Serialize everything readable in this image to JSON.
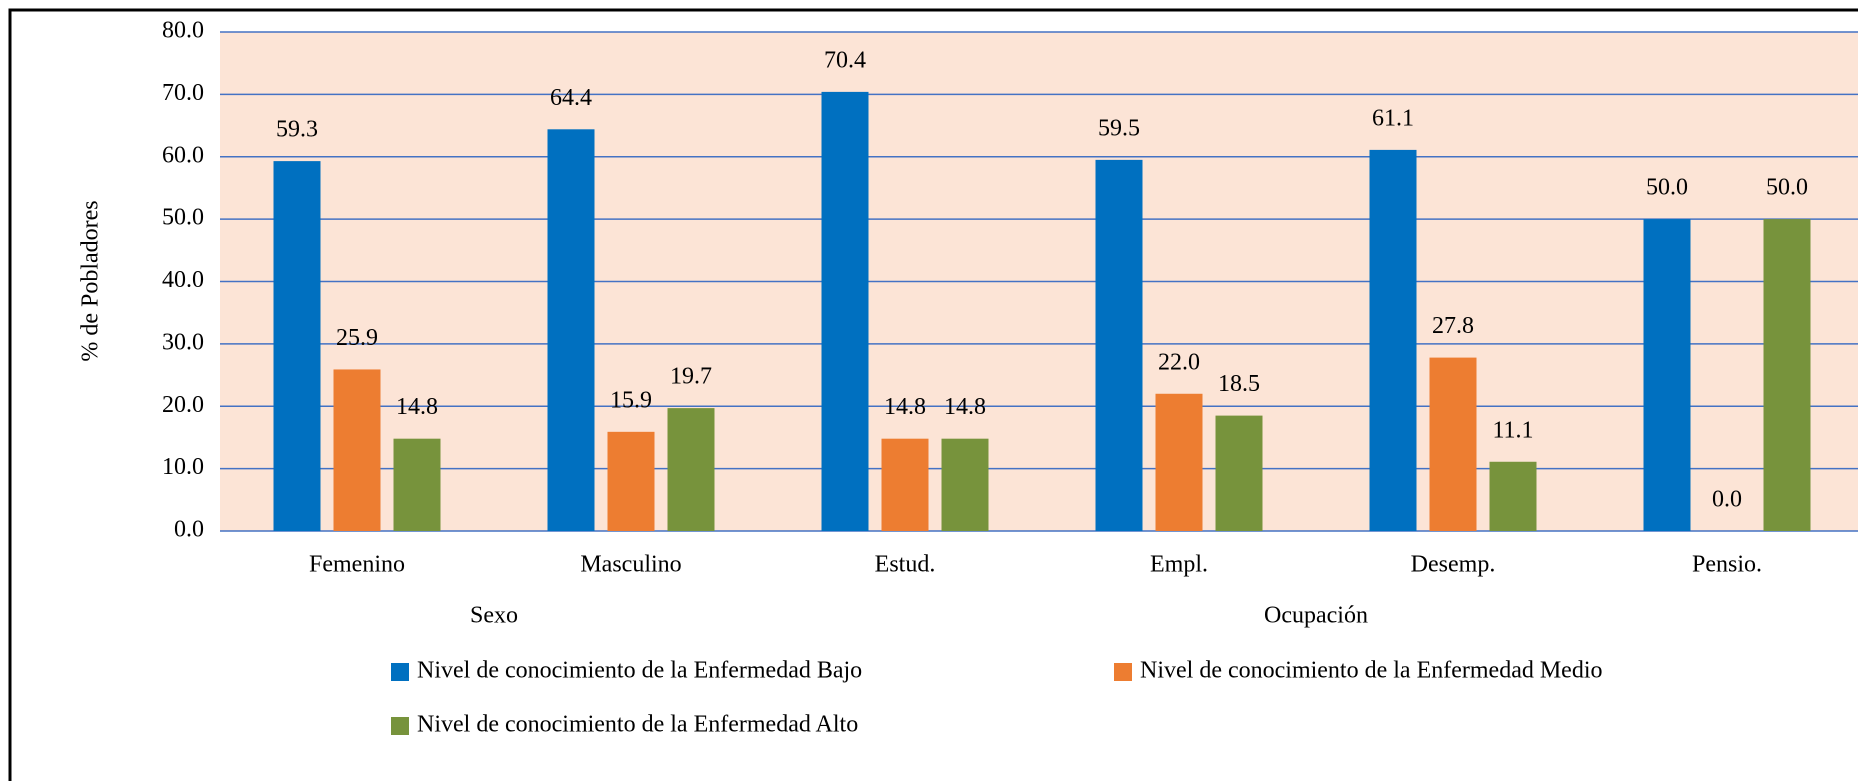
{
  "chart_data": {
    "type": "bar",
    "y_label": "% de Pobladores",
    "categories": [
      "Femenino",
      "Masculino",
      "Estud.",
      "Empl.",
      "Desemp.",
      "Pensio."
    ],
    "group_labels": [
      "Sexo",
      "Ocupación"
    ],
    "series": [
      {
        "name": "Nivel de conocimiento de la Enfermedad Bajo",
        "color": "#0070c0",
        "values": [
          59.3,
          64.4,
          70.4,
          59.5,
          61.1,
          50.0
        ],
        "value_labels": [
          "59.3",
          "64.4",
          "70.4",
          "59.5",
          "61.1",
          "50.0"
        ]
      },
      {
        "name": "Nivel de conocimiento de la Enfermedad Medio",
        "color": "#ed7d31",
        "values": [
          25.9,
          15.9,
          14.8,
          22.0,
          27.8,
          0.0
        ],
        "value_labels": [
          "25.9",
          "15.9",
          "14.8",
          "22.0",
          "27.8",
          "0.0"
        ]
      },
      {
        "name": "Nivel de conocimiento de la Enfermedad Alto",
        "color": "#77933c",
        "values": [
          14.8,
          19.7,
          14.8,
          18.5,
          11.1,
          50.0
        ],
        "value_labels": [
          "14.8",
          "19.7",
          "14.8",
          "18.5",
          "11.1",
          "50.0"
        ]
      }
    ],
    "ylim": [
      0,
      80
    ],
    "yticks": [
      {
        "value": 0,
        "label": "0.0"
      },
      {
        "value": 10,
        "label": "10.0"
      },
      {
        "value": 20,
        "label": "20.0"
      },
      {
        "value": 30,
        "label": "30.0"
      },
      {
        "value": 40,
        "label": "40.0"
      },
      {
        "value": 50,
        "label": "50.0"
      },
      {
        "value": 60,
        "label": "60.0"
      },
      {
        "value": 70,
        "label": "70.0"
      },
      {
        "value": 80,
        "label": "80.0"
      }
    ],
    "grid": true,
    "plot_background": "#fce4d6",
    "grid_color": "#4472c4",
    "legend": "bottom"
  }
}
